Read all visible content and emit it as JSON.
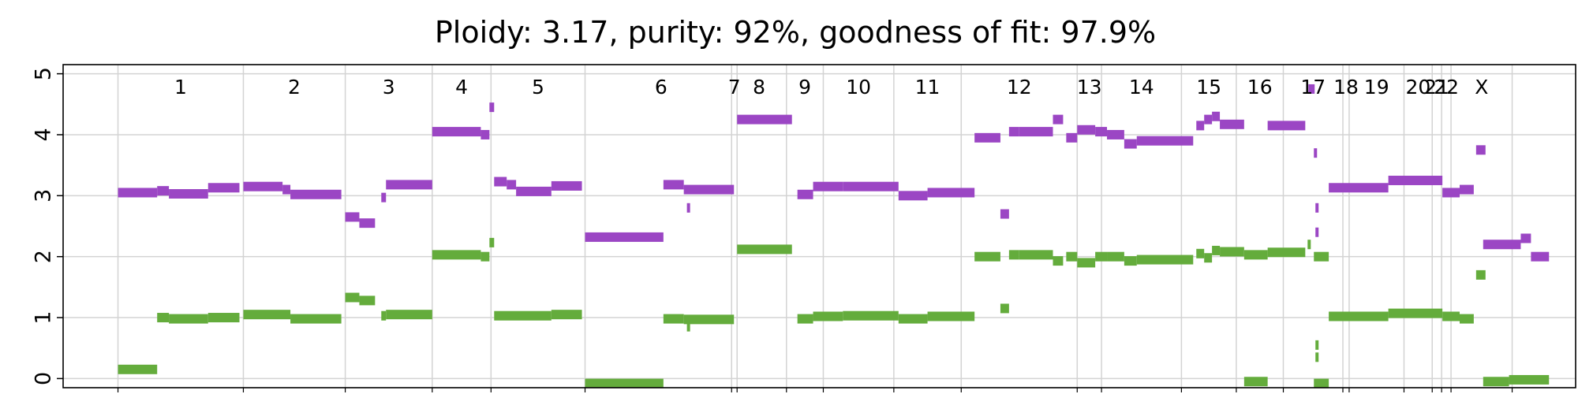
{
  "chart_data": {
    "type": "segment",
    "title": "Ploidy: 3.17, purity: 92%, goodness of fit: 97.9%",
    "ylim": [
      -0.15,
      5.15
    ],
    "yticks": [
      0,
      1,
      2,
      3,
      4,
      5
    ],
    "grid": true,
    "chromosomes": [
      {
        "name": "1",
        "start": 0,
        "end": 160
      },
      {
        "name": "2",
        "start": 160,
        "end": 290
      },
      {
        "name": "3",
        "start": 290,
        "end": 401
      },
      {
        "name": "4",
        "start": 401,
        "end": 476
      },
      {
        "name": "5",
        "start": 476,
        "end": 596
      },
      {
        "name": "6",
        "start": 596,
        "end": 790
      },
      {
        "name": "7",
        "start": 790,
        "end": 783
      },
      {
        "name": "8",
        "start": 783,
        "end": 853
      },
      {
        "name": "9",
        "start": 853,
        "end": 900
      },
      {
        "name": "10",
        "start": 900,
        "end": 990
      },
      {
        "name": "11",
        "start": 990,
        "end": 1076
      },
      {
        "name": "12",
        "start": 1076,
        "end": 1224
      },
      {
        "name": "13",
        "start": 1224,
        "end": 1255
      },
      {
        "name": "14",
        "start": 1255,
        "end": 1357
      },
      {
        "name": "15",
        "start": 1357,
        "end": 1427
      },
      {
        "name": "16",
        "start": 1427,
        "end": 1487
      },
      {
        "name": "17",
        "start": 1487,
        "end": 1563
      },
      {
        "name": "18",
        "start": 1563,
        "end": 1571
      },
      {
        "name": "19",
        "start": 1571,
        "end": 1641
      },
      {
        "name": "20",
        "start": 1641,
        "end": 1677
      },
      {
        "name": "21",
        "start": 1677,
        "end": 1689
      },
      {
        "name": "22",
        "start": 1689,
        "end": 1701
      },
      {
        "name": "X",
        "start": 1701,
        "end": 1779
      }
    ],
    "xlim": [
      -70,
      1860
    ],
    "series": [
      {
        "color": "#9b46c4",
        "segments": [
          [
            0,
            50,
            3.05
          ],
          [
            50,
            65,
            3.08
          ],
          [
            65,
            115,
            3.03
          ],
          [
            115,
            155,
            3.13
          ],
          [
            160,
            210,
            3.15
          ],
          [
            210,
            220,
            3.1
          ],
          [
            220,
            285,
            3.02
          ],
          [
            290,
            308,
            2.65
          ],
          [
            308,
            328,
            2.55
          ],
          [
            336,
            342,
            2.97
          ],
          [
            342,
            401,
            3.18
          ],
          [
            401,
            463,
            4.05
          ],
          [
            463,
            474,
            4.0
          ],
          [
            474,
            480,
            4.45
          ],
          [
            480,
            496,
            3.23
          ],
          [
            496,
            508,
            3.18
          ],
          [
            508,
            553,
            3.07
          ],
          [
            553,
            592,
            3.16
          ],
          [
            596,
            696,
            2.32
          ],
          [
            696,
            722,
            3.18
          ],
          [
            722,
            786,
            3.1
          ],
          [
            726,
            729,
            2.8
          ],
          [
            790,
            860,
            4.25
          ],
          [
            867,
            887,
            3.02
          ],
          [
            887,
            925,
            3.15
          ],
          [
            925,
            996,
            3.15
          ],
          [
            996,
            1033,
            3.0
          ],
          [
            1033,
            1093,
            3.05
          ],
          [
            1093,
            1126,
            3.95
          ],
          [
            1126,
            1137,
            2.7
          ],
          [
            1137,
            1150,
            4.05
          ],
          [
            1150,
            1193,
            4.05
          ],
          [
            1193,
            1206,
            4.25
          ],
          [
            1210,
            1224,
            3.95
          ],
          [
            1224,
            1247,
            4.08
          ],
          [
            1247,
            1262,
            4.05
          ],
          [
            1262,
            1284,
            4.0
          ],
          [
            1284,
            1300,
            3.85
          ],
          [
            1300,
            1372,
            3.9
          ],
          [
            1376,
            1386,
            4.15
          ],
          [
            1386,
            1396,
            4.25
          ],
          [
            1396,
            1406,
            4.3
          ],
          [
            1406,
            1437,
            4.17
          ],
          [
            1467,
            1515,
            4.15
          ],
          [
            1519,
            1527,
            4.75
          ],
          [
            1526,
            1530,
            3.7
          ],
          [
            1528,
            1532,
            2.8
          ],
          [
            1528,
            1532,
            2.4
          ],
          [
            1545,
            1621,
            3.13
          ],
          [
            1621,
            1690,
            3.25
          ],
          [
            1690,
            1712,
            3.05
          ],
          [
            1712,
            1730,
            3.1
          ],
          [
            1733,
            1745,
            3.75
          ],
          [
            1742,
            1790,
            2.2
          ],
          [
            1790,
            1803,
            2.3
          ],
          [
            1803,
            1826,
            2.0
          ]
        ]
      },
      {
        "color": "#64ac3c",
        "segments": [
          [
            0,
            50,
            0.15
          ],
          [
            50,
            65,
            1.0
          ],
          [
            65,
            115,
            0.98
          ],
          [
            115,
            155,
            1.0
          ],
          [
            160,
            220,
            1.05
          ],
          [
            220,
            285,
            0.98
          ],
          [
            290,
            308,
            1.33
          ],
          [
            308,
            328,
            1.28
          ],
          [
            336,
            342,
            1.03
          ],
          [
            342,
            401,
            1.05
          ],
          [
            401,
            463,
            2.03
          ],
          [
            463,
            474,
            2.0
          ],
          [
            474,
            480,
            2.23
          ],
          [
            480,
            553,
            1.03
          ],
          [
            553,
            592,
            1.05
          ],
          [
            596,
            696,
            -0.08
          ],
          [
            696,
            722,
            0.98
          ],
          [
            722,
            786,
            0.97
          ],
          [
            726,
            729,
            0.85
          ],
          [
            790,
            860,
            2.12
          ],
          [
            867,
            887,
            0.98
          ],
          [
            887,
            925,
            1.02
          ],
          [
            925,
            996,
            1.03
          ],
          [
            996,
            1033,
            0.98
          ],
          [
            1033,
            1093,
            1.02
          ],
          [
            1093,
            1126,
            2.0
          ],
          [
            1126,
            1137,
            1.15
          ],
          [
            1137,
            1150,
            2.03
          ],
          [
            1150,
            1193,
            2.03
          ],
          [
            1193,
            1206,
            1.93
          ],
          [
            1210,
            1224,
            2.0
          ],
          [
            1224,
            1247,
            1.9
          ],
          [
            1247,
            1262,
            2.0
          ],
          [
            1262,
            1284,
            2.0
          ],
          [
            1284,
            1300,
            1.93
          ],
          [
            1300,
            1372,
            1.95
          ],
          [
            1376,
            1386,
            2.05
          ],
          [
            1386,
            1396,
            1.98
          ],
          [
            1396,
            1406,
            2.1
          ],
          [
            1406,
            1437,
            2.08
          ],
          [
            1437,
            1467,
            2.03
          ],
          [
            1467,
            1515,
            2.07
          ],
          [
            1437,
            1467,
            -0.05
          ],
          [
            1518,
            1521,
            2.2
          ],
          [
            1528,
            1532,
            0.55
          ],
          [
            1528,
            1532,
            0.35
          ],
          [
            1526,
            1545,
            2.0
          ],
          [
            1526,
            1545,
            -0.08
          ],
          [
            1545,
            1621,
            1.02
          ],
          [
            1621,
            1690,
            1.07
          ],
          [
            1690,
            1712,
            1.02
          ],
          [
            1712,
            1730,
            0.98
          ],
          [
            1733,
            1745,
            1.7
          ],
          [
            1742,
            1775,
            -0.05
          ],
          [
            1775,
            1826,
            -0.02
          ]
        ]
      }
    ]
  }
}
